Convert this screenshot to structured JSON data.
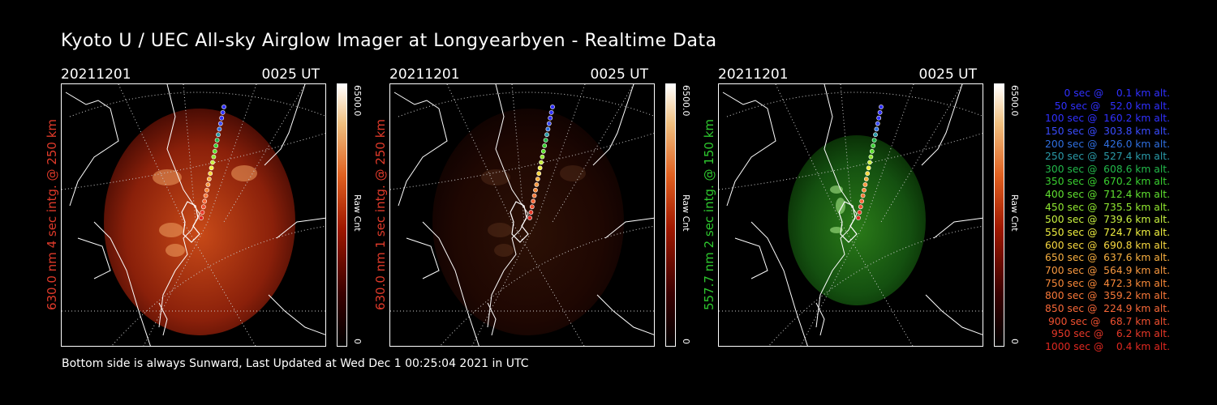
{
  "title": "Kyoto U / UEC All-sky Airglow Imager at Longyearbyen - Realtime Data",
  "footer": "Bottom side is always Sunward, Last Updated at Wed Dec  1 00:25:04 2021 in UTC",
  "panels": [
    {
      "date": "20211201",
      "time": "0025 UT",
      "ylabel": "630.0 nm 4 sec intg. @ 250 km",
      "label_color": "#e03a2a",
      "glow": "red",
      "intensity": 1.0,
      "cbar_max": "6500.0",
      "cbar_unit": "Raw Cnt",
      "cbar_min": "0"
    },
    {
      "date": "20211201",
      "time": "0025 UT",
      "ylabel": "630.0 nm 1 sec intg. @ 250 km",
      "label_color": "#e03a2a",
      "glow": "red",
      "intensity": 0.22,
      "cbar_max": "6500.0",
      "cbar_unit": "Raw Cnt",
      "cbar_min": "0"
    },
    {
      "date": "20211201",
      "time": "0025 UT",
      "ylabel": "557.7 nm 2 sec intg. @ 150 km",
      "label_color": "#2ec82e",
      "glow": "green",
      "intensity": 1.0,
      "cbar_max": "6500.0",
      "cbar_unit": "Raw Cnt",
      "cbar_min": "0"
    }
  ],
  "legend": [
    {
      "text": "   0 sec @    0.1 km alt.",
      "color": "#3030ff"
    },
    {
      "text": "  50 sec @   52.0 km alt.",
      "color": "#3030ff"
    },
    {
      "text": " 100 sec @  160.2 km alt.",
      "color": "#3030ff"
    },
    {
      "text": " 150 sec @  303.8 km alt.",
      "color": "#3a4cff"
    },
    {
      "text": " 200 sec @  426.0 km alt.",
      "color": "#2f6fe0"
    },
    {
      "text": " 250 sec @  527.4 km alt.",
      "color": "#2a9aa8"
    },
    {
      "text": " 300 sec @  608.6 km alt.",
      "color": "#22b84a"
    },
    {
      "text": " 350 sec @  670.2 km alt.",
      "color": "#3ad030"
    },
    {
      "text": " 400 sec @  712.4 km alt.",
      "color": "#60e030"
    },
    {
      "text": " 450 sec @  735.5 km alt.",
      "color": "#90e830"
    },
    {
      "text": " 500 sec @  739.6 km alt.",
      "color": "#c8f040"
    },
    {
      "text": " 550 sec @  724.7 km alt.",
      "color": "#f0f040"
    },
    {
      "text": " 600 sec @  690.8 km alt.",
      "color": "#f8d840"
    },
    {
      "text": " 650 sec @  637.6 km alt.",
      "color": "#f8b040"
    },
    {
      "text": " 700 sec @  564.9 km alt.",
      "color": "#f89840"
    },
    {
      "text": " 750 sec @  472.3 km alt.",
      "color": "#f88838"
    },
    {
      "text": " 800 sec @  359.2 km alt.",
      "color": "#f87838"
    },
    {
      "text": " 850 sec @  224.9 km alt.",
      "color": "#f86838"
    },
    {
      "text": " 900 sec @   68.7 km alt.",
      "color": "#f05030"
    },
    {
      "text": " 950 sec @    6.2 km alt.",
      "color": "#e83828"
    },
    {
      "text": "1000 sec @    0.4 km alt.",
      "color": "#e02820"
    }
  ]
}
